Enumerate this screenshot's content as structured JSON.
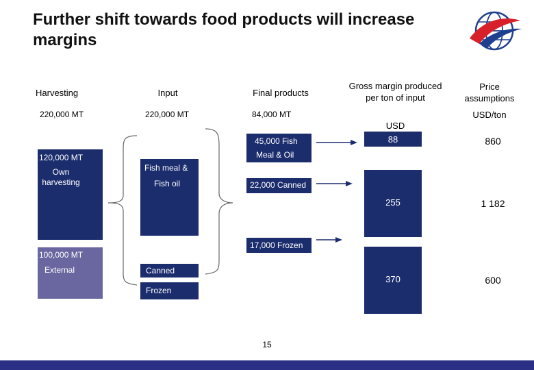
{
  "slide": {
    "title": "Further shift towards food products will increase margins",
    "page_number": "15"
  },
  "colors": {
    "box_navy": "#1c2d6e",
    "box_external": "#6a67a0",
    "footer_bar": "#2b2f86",
    "logo_red": "#d8202a",
    "logo_blue": "#1f3f8f"
  },
  "columns": {
    "harvesting": {
      "label": "Harvesting",
      "total": "220,000 MT"
    },
    "input": {
      "label": "Input",
      "total": "220,000 MT"
    },
    "final_products": {
      "label": "Final products",
      "total": "84,000 MT"
    },
    "gross_margin": {
      "label": "Gross margin produced per ton of input",
      "unit": "USD"
    },
    "price": {
      "label": "Price assumptions",
      "unit": "USD/ton"
    }
  },
  "harvesting_boxes": [
    {
      "value": "120,000 MT",
      "label": "Own harvesting"
    },
    {
      "value": "100,000 MT",
      "label": "External"
    }
  ],
  "input_boxes": [
    {
      "label_line1": "Fish meal &",
      "label_line2": "Fish oil"
    },
    {
      "label": "Canned"
    },
    {
      "label": "Frozen"
    }
  ],
  "final_boxes": [
    {
      "label_line1": "45,000 Fish",
      "label_line2": "Meal & Oil"
    },
    {
      "label": "22,000 Canned"
    },
    {
      "label": "17,000 Frozen"
    }
  ],
  "margin_rows": [
    {
      "margin": "88",
      "price": "860"
    },
    {
      "margin": "255",
      "price": "1 182"
    },
    {
      "margin": "370",
      "price": "600"
    }
  ]
}
